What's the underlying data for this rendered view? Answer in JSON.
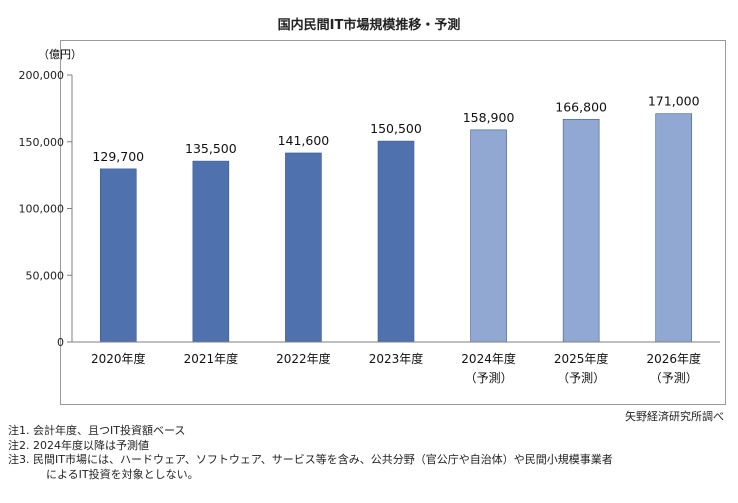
{
  "title": "国内民間IT市場規模推移・予測",
  "source": "矢野経済研究所調べ",
  "notes": [
    "注1.  会計年度、且つIT投資額ベース",
    "注2.  2024年度以降は予測値",
    "注3.  民間IT市場には、ハードウェア、ソフトウェア、サービス等を含み、公共分野（官公庁や自治体）や民間小規模事業者",
    "によるIT投資を対象としない。"
  ],
  "chart_data": {
    "type": "bar",
    "ylabel": "（億円）",
    "ylim": [
      0,
      200000
    ],
    "yticks": [
      0,
      50000,
      100000,
      150000,
      200000
    ],
    "ytick_labels": [
      "0",
      "50,000",
      "100,000",
      "150,000",
      "200,000"
    ],
    "categories": [
      "2020年度",
      "2021年度",
      "2022年度",
      "2023年度",
      "2024年度",
      "2025年度",
      "2026年度"
    ],
    "category_sublabels": [
      "",
      "",
      "",
      "",
      "（予測）",
      "（予測）",
      "（予測）"
    ],
    "values": [
      129700,
      135500,
      141600,
      150500,
      158900,
      166800,
      171000
    ],
    "value_labels": [
      "129,700",
      "135,500",
      "141,600",
      "150,500",
      "158,900",
      "166,800",
      "171,000"
    ],
    "forecast": [
      false,
      false,
      false,
      false,
      true,
      true,
      true
    ],
    "colors": {
      "actual": "#4f71ae",
      "forecast": "#91a8d2"
    },
    "grid": false
  }
}
